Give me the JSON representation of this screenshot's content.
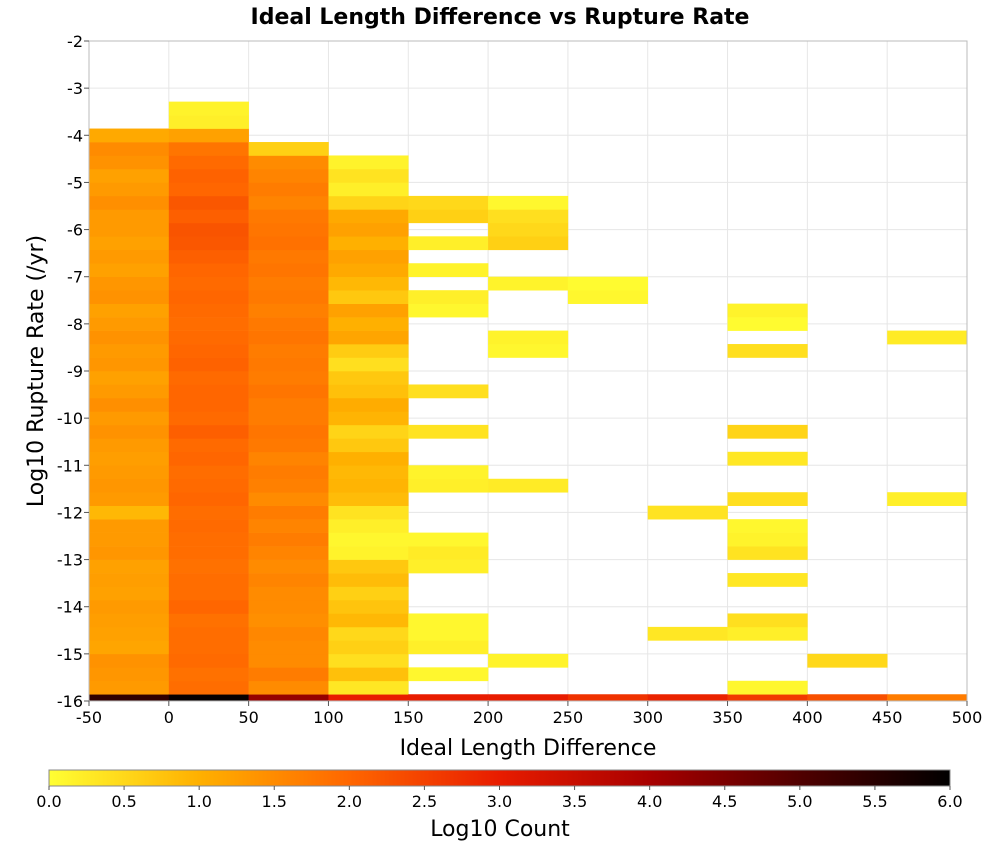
{
  "chart_data": {
    "type": "heatmap",
    "title": "Ideal Length Difference vs Rupture Rate",
    "xlabel": "Ideal Length Difference",
    "ylabel": "Log10 Rupture Rate (/yr)",
    "xlim": [
      -50,
      500
    ],
    "ylim": [
      -16,
      -2
    ],
    "x_ticks": [
      "-50",
      "0",
      "50",
      "100",
      "150",
      "200",
      "250",
      "300",
      "350",
      "400",
      "450",
      "500"
    ],
    "y_ticks": [
      "-2",
      "-3",
      "-4",
      "-5",
      "-6",
      "-7",
      "-8",
      "-9",
      "-10",
      "-11",
      "-12",
      "-13",
      "-14",
      "-15",
      "-16"
    ],
    "grid": true,
    "x_bin_width": 50,
    "y_bin_height": 0.286,
    "colorbar": {
      "label": "Log10 Count",
      "range": [
        0,
        6
      ],
      "ticks": [
        "0.0",
        "0.5",
        "1.0",
        "1.5",
        "2.0",
        "2.5",
        "3.0",
        "3.5",
        "4.0",
        "4.5",
        "5.0",
        "5.5",
        "6.0"
      ],
      "colors": [
        "#ffff33",
        "#ffb000",
        "#ff6600",
        "#e81c00",
        "#a80000",
        "#500000",
        "#000000"
      ]
    },
    "columns": [
      {
        "x": -50,
        "cells": [
          [
            -16.0,
            5.4
          ],
          [
            -15.714,
            1.3
          ],
          [
            -15.429,
            1.35
          ],
          [
            -15.143,
            1.4
          ],
          [
            -14.857,
            1.15
          ],
          [
            -14.571,
            1.2
          ],
          [
            -14.286,
            1.25
          ],
          [
            -14.0,
            1.3
          ],
          [
            -13.714,
            1.2
          ],
          [
            -13.429,
            1.25
          ],
          [
            -13.143,
            1.2
          ],
          [
            -12.857,
            1.35
          ],
          [
            -12.571,
            1.3
          ],
          [
            -12.286,
            1.3
          ],
          [
            -12.0,
            0.9
          ],
          [
            -11.714,
            1.3
          ],
          [
            -11.429,
            1.35
          ],
          [
            -11.143,
            1.3
          ],
          [
            -10.857,
            1.25
          ],
          [
            -10.571,
            1.3
          ],
          [
            -10.286,
            1.4
          ],
          [
            -10.0,
            1.3
          ],
          [
            -9.714,
            1.45
          ],
          [
            -9.429,
            1.3
          ],
          [
            -9.143,
            1.2
          ],
          [
            -8.857,
            1.35
          ],
          [
            -8.571,
            1.3
          ],
          [
            -8.286,
            1.4
          ],
          [
            -8.0,
            1.3
          ],
          [
            -7.714,
            1.2
          ],
          [
            -7.429,
            1.4
          ],
          [
            -7.143,
            1.35
          ],
          [
            -6.857,
            1.2
          ],
          [
            -6.571,
            1.3
          ],
          [
            -6.286,
            1.2
          ],
          [
            -6.0,
            1.3
          ],
          [
            -5.714,
            1.3
          ],
          [
            -5.429,
            1.45
          ],
          [
            -5.143,
            1.3
          ],
          [
            -4.857,
            1.2
          ],
          [
            -4.571,
            1.4
          ],
          [
            -4.286,
            1.5
          ],
          [
            -4.0,
            1.1
          ]
        ]
      },
      {
        "x": 0,
        "cells": [
          [
            -16.0,
            5.9
          ],
          [
            -15.714,
            1.9
          ],
          [
            -15.429,
            1.85
          ],
          [
            -15.143,
            1.95
          ],
          [
            -14.857,
            1.9
          ],
          [
            -14.571,
            1.9
          ],
          [
            -14.286,
            1.85
          ],
          [
            -14.0,
            2.0
          ],
          [
            -13.714,
            1.9
          ],
          [
            -13.429,
            1.9
          ],
          [
            -13.143,
            1.85
          ],
          [
            -12.857,
            1.9
          ],
          [
            -12.571,
            1.9
          ],
          [
            -12.286,
            1.95
          ],
          [
            -12.0,
            1.9
          ],
          [
            -11.714,
            2.0
          ],
          [
            -11.429,
            1.95
          ],
          [
            -11.143,
            1.9
          ],
          [
            -10.857,
            2.0
          ],
          [
            -10.571,
            1.95
          ],
          [
            -10.286,
            2.1
          ],
          [
            -10.0,
            1.95
          ],
          [
            -9.714,
            2.0
          ],
          [
            -9.429,
            2.0
          ],
          [
            -9.143,
            1.95
          ],
          [
            -8.857,
            2.05
          ],
          [
            -8.571,
            2.0
          ],
          [
            -8.286,
            1.95
          ],
          [
            -8.0,
            1.9
          ],
          [
            -7.714,
            1.95
          ],
          [
            -7.429,
            2.0
          ],
          [
            -7.143,
            1.95
          ],
          [
            -6.857,
            2.0
          ],
          [
            -6.571,
            2.1
          ],
          [
            -6.286,
            2.2
          ],
          [
            -6.0,
            2.25
          ],
          [
            -5.714,
            2.1
          ],
          [
            -5.429,
            2.2
          ],
          [
            -5.143,
            2.0
          ],
          [
            -4.857,
            2.05
          ],
          [
            -4.571,
            1.95
          ],
          [
            -4.286,
            1.8
          ],
          [
            -4.0,
            1.2
          ],
          [
            -3.714,
            0.2
          ],
          [
            -3.429,
            0.15
          ]
        ]
      },
      {
        "x": 50,
        "cells": [
          [
            -16.0,
            4.2
          ],
          [
            -15.714,
            1.5
          ],
          [
            -15.429,
            1.7
          ],
          [
            -15.143,
            1.5
          ],
          [
            -14.857,
            1.5
          ],
          [
            -14.571,
            1.55
          ],
          [
            -14.286,
            1.45
          ],
          [
            -14.0,
            1.5
          ],
          [
            -13.714,
            1.5
          ],
          [
            -13.429,
            1.6
          ],
          [
            -13.143,
            1.5
          ],
          [
            -12.857,
            1.6
          ],
          [
            -12.571,
            1.7
          ],
          [
            -12.286,
            1.6
          ],
          [
            -12.0,
            1.7
          ],
          [
            -11.714,
            1.5
          ],
          [
            -11.429,
            1.65
          ],
          [
            -11.143,
            1.7
          ],
          [
            -10.857,
            1.6
          ],
          [
            -10.571,
            1.75
          ],
          [
            -10.286,
            1.8
          ],
          [
            -10.0,
            1.7
          ],
          [
            -9.714,
            1.7
          ],
          [
            -9.429,
            1.8
          ],
          [
            -9.143,
            1.7
          ],
          [
            -8.857,
            1.75
          ],
          [
            -8.571,
            1.7
          ],
          [
            -8.286,
            1.8
          ],
          [
            -8.0,
            1.75
          ],
          [
            -7.714,
            1.65
          ],
          [
            -7.429,
            1.75
          ],
          [
            -7.143,
            1.7
          ],
          [
            -6.857,
            1.8
          ],
          [
            -6.571,
            1.75
          ],
          [
            -6.286,
            1.85
          ],
          [
            -6.0,
            1.8
          ],
          [
            -5.714,
            1.75
          ],
          [
            -5.429,
            1.6
          ],
          [
            -5.143,
            1.7
          ],
          [
            -4.857,
            1.6
          ],
          [
            -4.571,
            1.5
          ],
          [
            -4.286,
            0.6
          ]
        ]
      },
      {
        "x": 100,
        "cells": [
          [
            -16.0,
            3.0
          ],
          [
            -15.714,
            0.3
          ],
          [
            -15.429,
            0.8
          ],
          [
            -15.143,
            0.4
          ],
          [
            -14.857,
            0.6
          ],
          [
            -14.571,
            0.5
          ],
          [
            -14.286,
            0.9
          ],
          [
            -14.0,
            0.75
          ],
          [
            -13.714,
            0.6
          ],
          [
            -13.429,
            0.85
          ],
          [
            -13.143,
            0.7
          ],
          [
            -12.857,
            0.15
          ],
          [
            -12.571,
            0.1
          ],
          [
            -12.286,
            0.2
          ],
          [
            -12.0,
            0.35
          ],
          [
            -11.714,
            0.85
          ],
          [
            -11.429,
            0.95
          ],
          [
            -11.143,
            0.9
          ],
          [
            -10.857,
            1.0
          ],
          [
            -10.571,
            0.7
          ],
          [
            -10.286,
            0.55
          ],
          [
            -10.0,
            0.95
          ],
          [
            -9.714,
            1.05
          ],
          [
            -9.429,
            0.8
          ],
          [
            -9.143,
            0.7
          ],
          [
            -8.857,
            0.4
          ],
          [
            -8.571,
            0.65
          ],
          [
            -8.286,
            1.15
          ],
          [
            -8.0,
            1.0
          ],
          [
            -7.714,
            1.2
          ],
          [
            -7.429,
            0.7
          ],
          [
            -7.143,
            0.9
          ],
          [
            -6.857,
            1.1
          ],
          [
            -6.571,
            1.2
          ],
          [
            -6.286,
            1.0
          ],
          [
            -6.0,
            1.2
          ],
          [
            -5.714,
            1.1
          ],
          [
            -5.429,
            0.55
          ],
          [
            -5.143,
            0.2
          ],
          [
            -4.857,
            0.35
          ],
          [
            -4.571,
            0.15
          ]
        ]
      },
      {
        "x": 150,
        "cells": [
          [
            -16.0,
            3.0
          ],
          [
            -15.429,
            0.1
          ],
          [
            -14.857,
            0.2
          ],
          [
            -14.571,
            0.1
          ],
          [
            -14.286,
            0.1
          ],
          [
            -13.143,
            0.2
          ],
          [
            -12.857,
            0.25
          ],
          [
            -12.571,
            0.1
          ],
          [
            -11.429,
            0.2
          ],
          [
            -11.143,
            0.15
          ],
          [
            -10.286,
            0.35
          ],
          [
            -9.429,
            0.4
          ],
          [
            -7.714,
            0.1
          ],
          [
            -7.429,
            0.2
          ],
          [
            -6.857,
            0.15
          ],
          [
            -6.286,
            0.2
          ],
          [
            -5.714,
            0.6
          ],
          [
            -5.429,
            0.5
          ]
        ]
      },
      {
        "x": 200,
        "cells": [
          [
            -16.0,
            3.0
          ],
          [
            -15.143,
            0.15
          ],
          [
            -11.429,
            0.25
          ],
          [
            -8.571,
            0.1
          ],
          [
            -8.286,
            0.15
          ],
          [
            -7.143,
            0.15
          ],
          [
            -6.286,
            0.6
          ],
          [
            -6.0,
            0.5
          ],
          [
            -5.714,
            0.4
          ],
          [
            -5.429,
            0.1
          ]
        ]
      },
      {
        "x": 250,
        "cells": [
          [
            -16.0,
            2.7
          ],
          [
            -7.429,
            0.1
          ],
          [
            -7.143,
            0.05
          ]
        ]
      },
      {
        "x": 300,
        "cells": [
          [
            -16.0,
            2.9
          ],
          [
            -14.571,
            0.3
          ],
          [
            -12.0,
            0.35
          ]
        ]
      },
      {
        "x": 350,
        "cells": [
          [
            -16.0,
            2.6
          ],
          [
            -15.714,
            0.1
          ],
          [
            -14.571,
            0.2
          ],
          [
            -14.286,
            0.4
          ],
          [
            -13.429,
            0.3
          ],
          [
            -12.857,
            0.35
          ],
          [
            -12.571,
            0.15
          ],
          [
            -12.286,
            0.1
          ],
          [
            -11.714,
            0.4
          ],
          [
            -10.857,
            0.3
          ],
          [
            -10.286,
            0.55
          ],
          [
            -8.571,
            0.4
          ],
          [
            -8.0,
            0.05
          ],
          [
            -7.714,
            0.15
          ]
        ]
      },
      {
        "x": 400,
        "cells": [
          [
            -16.0,
            2.3
          ],
          [
            -15.143,
            0.5
          ]
        ]
      },
      {
        "x": 450,
        "cells": [
          [
            -16.0,
            1.7
          ],
          [
            -11.714,
            0.2
          ],
          [
            -8.286,
            0.25
          ]
        ]
      }
    ]
  }
}
